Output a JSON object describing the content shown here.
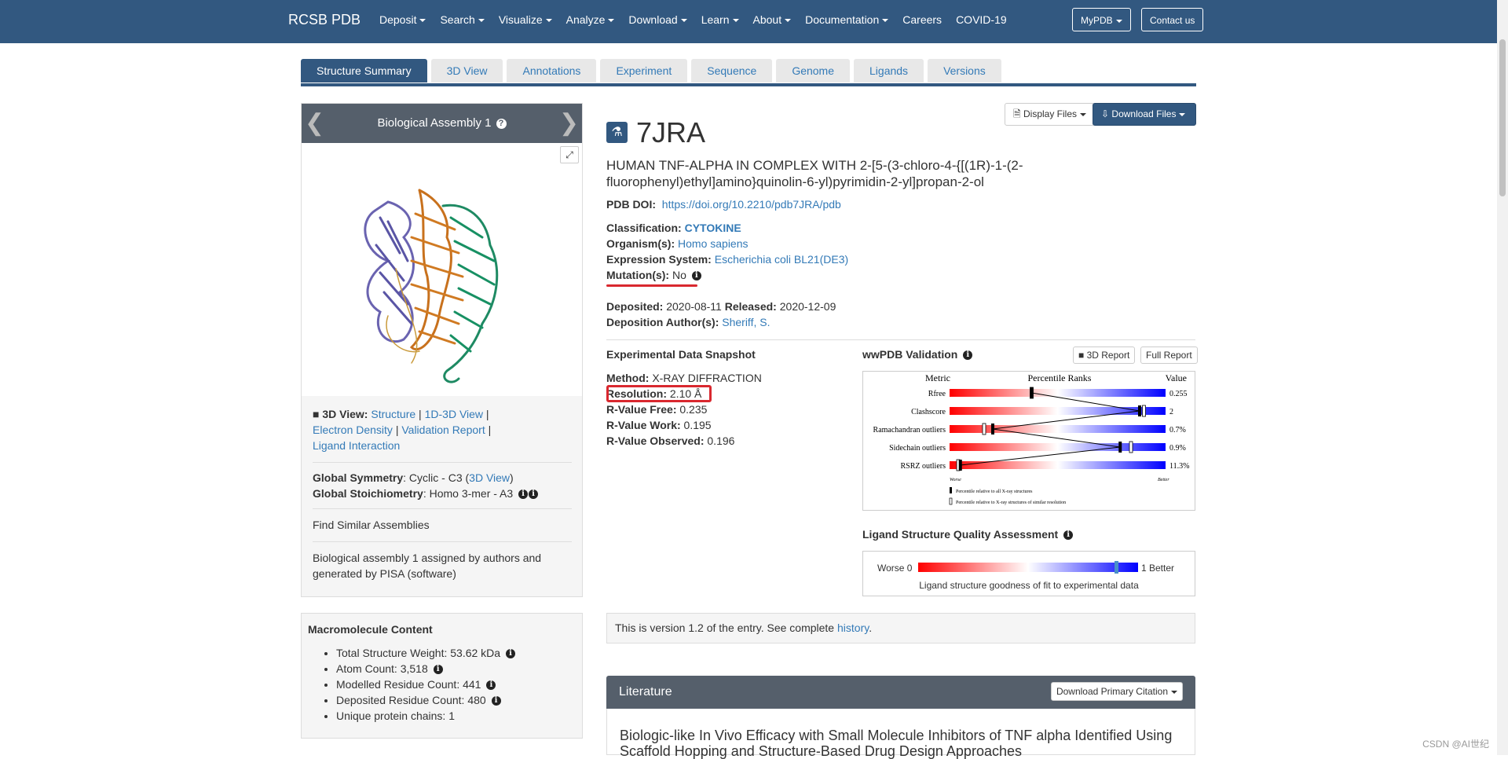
{
  "navbar": {
    "brand": "RCSB PDB",
    "items": [
      "Deposit",
      "Search",
      "Visualize",
      "Analyze",
      "Download",
      "Learn",
      "About",
      "Documentation",
      "Careers",
      "COVID-19"
    ],
    "mypdb": "MyPDB",
    "contact": "Contact us"
  },
  "tabs": [
    "Structure Summary",
    "3D View",
    "Annotations",
    "Experiment",
    "Sequence",
    "Genome",
    "Ligands",
    "Versions"
  ],
  "assembly": {
    "title": "Biological Assembly 1",
    "view_label": "3D View:",
    "view_links": [
      "Structure",
      "1D-3D View",
      "Electron Density",
      "Validation Report",
      "Ligand Interaction"
    ],
    "symmetry_label": "Global Symmetry",
    "symmetry_value": ": Cyclic - C3 (",
    "symmetry_link": "3D View",
    "symmetry_close": ")",
    "stoich_label": "Global Stoichiometry",
    "stoich_value": ": Homo 3-mer - A3",
    "find_similar": "Find Similar Assemblies",
    "note": "Biological assembly 1 assigned by authors and generated by PISA (software)"
  },
  "macromolecule": {
    "title": "Macromolecule Content",
    "items": [
      "Total Structure Weight: 53.62 kDa",
      "Atom Count: 3,518",
      "Modelled Residue Count: 441",
      "Deposited Residue Count: 480",
      "Unique protein chains: 1"
    ]
  },
  "entry": {
    "display_files": "Display Files",
    "download_files": "Download Files",
    "id": "7JRA",
    "title": "HUMAN TNF-ALPHA IN COMPLEX WITH 2-[5-(3-chloro-4-{[(1R)-1-(2-fluorophenyl)ethyl]amino}quinolin-6-yl)pyrimidin-2-yl]propan-2-ol",
    "doi_label": "PDB DOI:",
    "doi": "https://doi.org/10.2210/pdb7JRA/pdb",
    "classification_label": "Classification:",
    "classification": "CYTOKINE",
    "organism_label": "Organism(s):",
    "organism": "Homo sapiens",
    "expression_label": "Expression System:",
    "expression": "Escherichia coli BL21(DE3)",
    "mutation_label": "Mutation(s):",
    "mutation": "No",
    "deposited_label": "Deposited:",
    "deposited": "2020-08-11",
    "released_label": "Released:",
    "released": "2020-12-09",
    "authors_label": "Deposition Author(s):",
    "authors": "Sheriff, S."
  },
  "experiment": {
    "title": "Experimental Data Snapshot",
    "method_label": "Method:",
    "method": "X-RAY DIFFRACTION",
    "resolution_label": "Resolution:",
    "resolution": "2.10 Å",
    "rfree_label": "R-Value Free:",
    "rfree": "0.235",
    "rwork_label": "R-Value Work:",
    "rwork": "0.195",
    "robs_label": "R-Value Observed:",
    "robs": "0.196"
  },
  "validation": {
    "title": "wwPDB Validation",
    "report_3d": "3D Report",
    "report_full": "Full Report",
    "headers": [
      "Metric",
      "Percentile Ranks",
      "Value"
    ],
    "metrics": [
      {
        "name": "Rfree",
        "value": "0.255",
        "all": 0.38,
        "similar": 0.38
      },
      {
        "name": "Clashscore",
        "value": "2",
        "all": 0.88,
        "similar": 0.9
      },
      {
        "name": "Ramachandran outliers",
        "value": "0.7%",
        "all": 0.2,
        "similar": 0.16
      },
      {
        "name": "Sidechain outliers",
        "value": "0.9%",
        "all": 0.79,
        "similar": 0.84
      },
      {
        "name": "RSRZ outliers",
        "value": "11.3%",
        "all": 0.05,
        "similar": 0.04
      }
    ],
    "worse": "Worse",
    "better": "Better",
    "legend_all": "Percentile relative to all X-ray structures",
    "legend_similar": "Percentile relative to X-ray structures of similar resolution"
  },
  "ligand_quality": {
    "title": "Ligand Structure Quality Assessment",
    "worse": "Worse 0",
    "better": "1 Better",
    "score": 0.9,
    "caption": "Ligand structure goodness of fit to experimental data"
  },
  "version": {
    "text": "This is version 1.2 of the entry. See complete ",
    "link": "history",
    "end": "."
  },
  "literature": {
    "title": "Literature",
    "download_citation": "Download Primary Citation",
    "citation": "Biologic-like In Vivo Efficacy with Small Molecule Inhibitors of TNF alpha Identified Using Scaffold Hopping and Structure-Based Drug Design Approaches"
  },
  "watermark": "CSDN @AI世纪",
  "colors": {
    "navbar": "#325880",
    "link": "#337ab7",
    "highlight": "#d9282f",
    "panel_head": "#555f6b"
  }
}
